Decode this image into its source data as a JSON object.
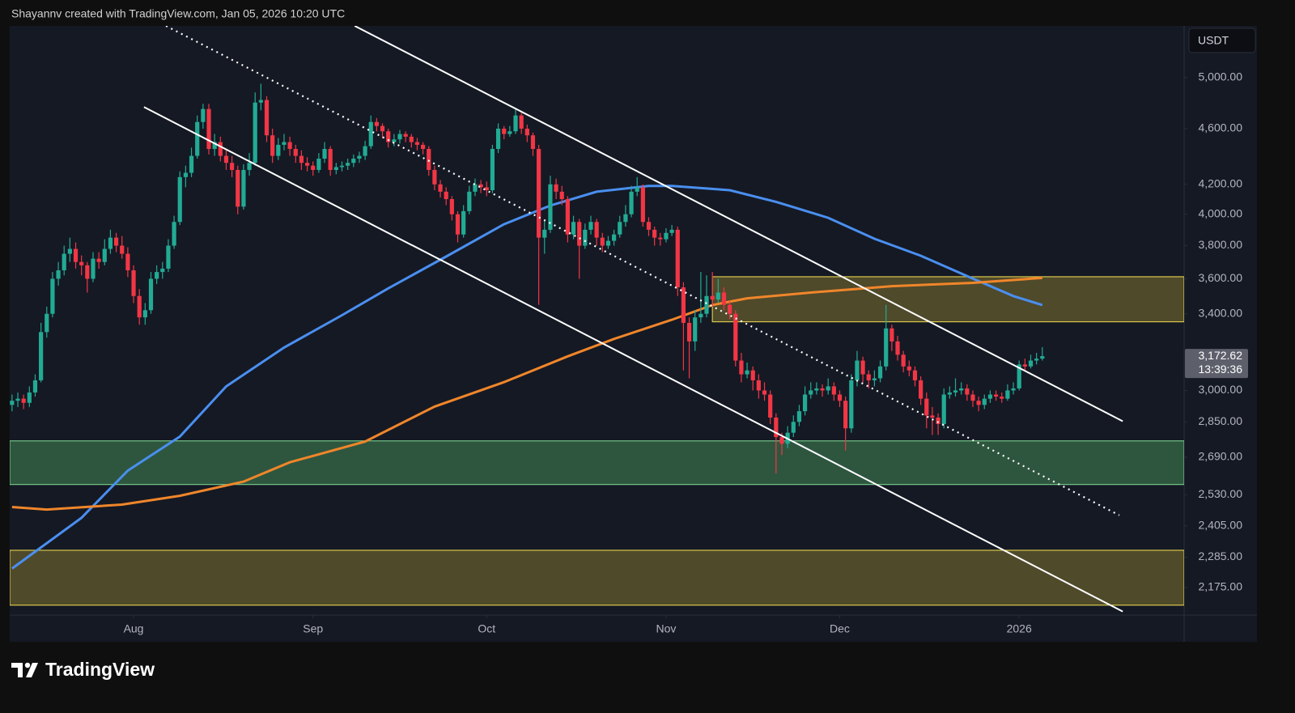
{
  "header": {
    "text": "Shayannv created with TradingView.com, Jan 05, 2026 10:20 UTC"
  },
  "logo": {
    "text": "TradingView"
  },
  "chart_data": {
    "type": "candlestick",
    "currency": "USDT",
    "log_scale": true,
    "up_color": "#22ab94",
    "down_color": "#f23645",
    "ylim": [
      2079,
      5440
    ],
    "yticks": [
      {
        "value": 5000,
        "label": "5,000.00"
      },
      {
        "value": 4600,
        "label": "4,600.00"
      },
      {
        "value": 4200,
        "label": "4,200.00"
      },
      {
        "value": 4000,
        "label": "4,000.00"
      },
      {
        "value": 3800,
        "label": "3,800.00"
      },
      {
        "value": 3600,
        "label": "3,600.00"
      },
      {
        "value": 3400,
        "label": "3,400.00"
      },
      {
        "value": 3000,
        "label": "3,000.00"
      },
      {
        "value": 2850,
        "label": "2,850.00"
      },
      {
        "value": 2690,
        "label": "2,690.00"
      },
      {
        "value": 2530,
        "label": "2,530.00"
      },
      {
        "value": 2405,
        "label": "2,405.00"
      },
      {
        "value": 2285,
        "label": "2,285.00"
      },
      {
        "value": 2175,
        "label": "2,175.00"
      }
    ],
    "xlim": [
      -0.4,
      202.5
    ],
    "xticks": [
      {
        "value": 21,
        "label": "Aug"
      },
      {
        "value": 52,
        "label": "Sep"
      },
      {
        "value": 82,
        "label": "Oct"
      },
      {
        "value": 113,
        "label": "Nov"
      },
      {
        "value": 143,
        "label": "Dec"
      },
      {
        "value": 174,
        "label": "2026"
      }
    ],
    "last_price": {
      "value": 3172.62,
      "label": "3,172.62"
    },
    "countdown": "13:39:36",
    "zones": [
      {
        "x_start": 121,
        "range": [
          3356,
          3612
        ],
        "fill": "#4f4a2a",
        "border": "#d9c74b"
      },
      {
        "range": [
          2573,
          2763
        ],
        "fill": "#2e563f",
        "border": "#72c386"
      },
      {
        "range": [
          2113,
          2311
        ],
        "fill": "#4f4a2a",
        "border": "#d9c74b"
      }
    ],
    "trendlines": [
      {
        "x": [
          59.2,
          191.9
        ],
        "values": [
          5440,
          2853
        ],
        "dashed": false
      },
      {
        "x": [
          26.6,
          191.3
        ],
        "values": [
          5440,
          2447
        ],
        "dashed": true
      },
      {
        "x": [
          22.8,
          191.9
        ],
        "values": [
          4765,
          2091
        ],
        "dashed": false
      }
    ],
    "moving_averages": [
      {
        "color": "#4a8ff0",
        "x": [
          0,
          12,
          20,
          29,
          37,
          47,
          57,
          65,
          75,
          85,
          93,
          101,
          110,
          114,
          124,
          132,
          141,
          149,
          157,
          166,
          173,
          178
        ],
        "values": [
          2243,
          2437,
          2632,
          2782,
          3020,
          3218,
          3392,
          3544,
          3733,
          3935,
          4057,
          4150,
          4189,
          4189,
          4160,
          4082,
          3977,
          3843,
          3738,
          3601,
          3500,
          3449
        ]
      },
      {
        "color": "#f0862a",
        "x": [
          0,
          6,
          19,
          29,
          40,
          48,
          61,
          73,
          85,
          96,
          104,
          114,
          121,
          127,
          138,
          152,
          166,
          178
        ],
        "values": [
          2480,
          2470,
          2490,
          2526,
          2585,
          2668,
          2760,
          2922,
          3041,
          3172,
          3263,
          3367,
          3449,
          3487,
          3520,
          3557,
          3576,
          3605
        ]
      }
    ],
    "ohlc": [
      [
        2930,
        2980,
        2900,
        2950
      ],
      [
        2950,
        2990,
        2920,
        2960
      ],
      [
        2960,
        2980,
        2910,
        2940
      ],
      [
        2940,
        3020,
        2920,
        2990
      ],
      [
        2990,
        3080,
        2970,
        3050
      ],
      [
        3050,
        3350,
        3040,
        3300
      ],
      [
        3300,
        3440,
        3270,
        3400
      ],
      [
        3400,
        3640,
        3380,
        3600
      ],
      [
        3600,
        3700,
        3560,
        3650
      ],
      [
        3650,
        3800,
        3620,
        3750
      ],
      [
        3750,
        3850,
        3700,
        3780
      ],
      [
        3780,
        3820,
        3660,
        3700
      ],
      [
        3700,
        3740,
        3620,
        3680
      ],
      [
        3680,
        3700,
        3520,
        3600
      ],
      [
        3600,
        3760,
        3580,
        3720
      ],
      [
        3720,
        3760,
        3660,
        3700
      ],
      [
        3700,
        3840,
        3680,
        3780
      ],
      [
        3780,
        3900,
        3750,
        3850
      ],
      [
        3850,
        3880,
        3760,
        3800
      ],
      [
        3800,
        3860,
        3720,
        3750
      ],
      [
        3750,
        3790,
        3610,
        3650
      ],
      [
        3650,
        3680,
        3460,
        3500
      ],
      [
        3500,
        3540,
        3340,
        3380
      ],
      [
        3380,
        3460,
        3340,
        3420
      ],
      [
        3420,
        3640,
        3400,
        3600
      ],
      [
        3600,
        3680,
        3570,
        3640
      ],
      [
        3640,
        3700,
        3600,
        3660
      ],
      [
        3660,
        3840,
        3640,
        3800
      ],
      [
        3800,
        3990,
        3780,
        3950
      ],
      [
        3950,
        4290,
        3930,
        4250
      ],
      [
        4250,
        4330,
        4180,
        4280
      ],
      [
        4280,
        4460,
        4250,
        4400
      ],
      [
        4400,
        4700,
        4380,
        4650
      ],
      [
        4650,
        4790,
        4600,
        4750
      ],
      [
        4750,
        4790,
        4410,
        4450
      ],
      [
        4450,
        4560,
        4400,
        4500
      ],
      [
        4500,
        4540,
        4360,
        4400
      ],
      [
        4400,
        4440,
        4300,
        4350
      ],
      [
        4350,
        4400,
        4250,
        4300
      ],
      [
        4300,
        4330,
        4000,
        4050
      ],
      [
        4050,
        4340,
        4030,
        4300
      ],
      [
        4300,
        4420,
        4260,
        4350
      ],
      [
        4350,
        4880,
        4330,
        4800
      ],
      [
        4800,
        4950,
        4740,
        4820
      ],
      [
        4820,
        4850,
        4500,
        4550
      ],
      [
        4550,
        4600,
        4350,
        4400
      ],
      [
        4400,
        4530,
        4370,
        4480
      ],
      [
        4480,
        4560,
        4440,
        4500
      ],
      [
        4500,
        4540,
        4400,
        4450
      ],
      [
        4450,
        4480,
        4350,
        4400
      ],
      [
        4400,
        4440,
        4300,
        4350
      ],
      [
        4350,
        4390,
        4290,
        4330
      ],
      [
        4330,
        4360,
        4260,
        4300
      ],
      [
        4300,
        4420,
        4280,
        4380
      ],
      [
        4380,
        4500,
        4350,
        4450
      ],
      [
        4450,
        4470,
        4260,
        4300
      ],
      [
        4300,
        4350,
        4270,
        4320
      ],
      [
        4320,
        4360,
        4290,
        4330
      ],
      [
        4330,
        4380,
        4300,
        4350
      ],
      [
        4350,
        4410,
        4320,
        4380
      ],
      [
        4380,
        4430,
        4350,
        4400
      ],
      [
        4400,
        4510,
        4370,
        4470
      ],
      [
        4470,
        4700,
        4450,
        4650
      ],
      [
        4650,
        4680,
        4580,
        4620
      ],
      [
        4620,
        4640,
        4530,
        4580
      ],
      [
        4580,
        4600,
        4460,
        4500
      ],
      [
        4500,
        4560,
        4470,
        4520
      ],
      [
        4520,
        4590,
        4490,
        4560
      ],
      [
        4560,
        4580,
        4500,
        4540
      ],
      [
        4540,
        4560,
        4460,
        4500
      ],
      [
        4500,
        4530,
        4440,
        4480
      ],
      [
        4480,
        4500,
        4410,
        4450
      ],
      [
        4450,
        4470,
        4260,
        4300
      ],
      [
        4300,
        4330,
        4160,
        4200
      ],
      [
        4200,
        4230,
        4110,
        4150
      ],
      [
        4150,
        4180,
        4060,
        4100
      ],
      [
        4100,
        4120,
        3960,
        4000
      ],
      [
        4000,
        4020,
        3820,
        3870
      ],
      [
        3870,
        4060,
        3850,
        4020
      ],
      [
        4020,
        4190,
        4000,
        4150
      ],
      [
        4150,
        4240,
        4120,
        4200
      ],
      [
        4200,
        4230,
        4140,
        4180
      ],
      [
        4180,
        4220,
        4120,
        4160
      ],
      [
        4160,
        4480,
        4140,
        4450
      ],
      [
        4450,
        4640,
        4420,
        4600
      ],
      [
        4600,
        4620,
        4520,
        4560
      ],
      [
        4560,
        4620,
        4540,
        4580
      ],
      [
        4580,
        4760,
        4560,
        4700
      ],
      [
        4700,
        4720,
        4560,
        4600
      ],
      [
        4600,
        4630,
        4500,
        4550
      ],
      [
        4550,
        4570,
        4400,
        4450
      ],
      [
        4450,
        4480,
        3450,
        3850
      ],
      [
        3850,
        3960,
        3750,
        3900
      ],
      [
        3900,
        4260,
        3880,
        4200
      ],
      [
        4200,
        4240,
        4100,
        4150
      ],
      [
        4150,
        4190,
        4060,
        4100
      ],
      [
        4100,
        4120,
        3820,
        3870
      ],
      [
        3870,
        3990,
        3840,
        3950
      ],
      [
        3950,
        3970,
        3600,
        3800
      ],
      [
        3800,
        3940,
        3780,
        3900
      ],
      [
        3900,
        3990,
        3870,
        3950
      ],
      [
        3950,
        3970,
        3800,
        3850
      ],
      [
        3850,
        3880,
        3760,
        3800
      ],
      [
        3800,
        3860,
        3780,
        3830
      ],
      [
        3830,
        3900,
        3800,
        3870
      ],
      [
        3870,
        3990,
        3850,
        3950
      ],
      [
        3950,
        4060,
        3920,
        4000
      ],
      [
        4000,
        4190,
        3980,
        4150
      ],
      [
        4150,
        4250,
        4120,
        4180
      ],
      [
        4180,
        4200,
        3920,
        3950
      ],
      [
        3950,
        3980,
        3860,
        3900
      ],
      [
        3900,
        3920,
        3800,
        3850
      ],
      [
        3850,
        3880,
        3800,
        3840
      ],
      [
        3840,
        3910,
        3820,
        3880
      ],
      [
        3880,
        3930,
        3860,
        3900
      ],
      [
        3900,
        3920,
        3500,
        3550
      ],
      [
        3550,
        3580,
        3100,
        3350
      ],
      [
        3350,
        3380,
        3060,
        3250
      ],
      [
        3250,
        3420,
        3200,
        3380
      ],
      [
        3380,
        3640,
        3350,
        3400
      ],
      [
        3400,
        3620,
        3380,
        3500
      ],
      [
        3500,
        3640,
        3440,
        3480
      ],
      [
        3480,
        3600,
        3460,
        3520
      ],
      [
        3520,
        3550,
        3420,
        3450
      ],
      [
        3450,
        3470,
        3370,
        3400
      ],
      [
        3400,
        3420,
        3120,
        3150
      ],
      [
        3150,
        3190,
        3040,
        3080
      ],
      [
        3080,
        3140,
        3060,
        3100
      ],
      [
        3100,
        3120,
        3000,
        3050
      ],
      [
        3050,
        3080,
        2960,
        3000
      ],
      [
        3000,
        3040,
        2950,
        2980
      ],
      [
        2980,
        3000,
        2840,
        2870
      ],
      [
        2870,
        2890,
        2620,
        2780
      ],
      [
        2780,
        2800,
        2700,
        2750
      ],
      [
        2750,
        2830,
        2730,
        2800
      ],
      [
        2800,
        2880,
        2780,
        2850
      ],
      [
        2850,
        2930,
        2830,
        2900
      ],
      [
        2900,
        3020,
        2880,
        2980
      ],
      [
        2980,
        3040,
        2960,
        3000
      ],
      [
        3000,
        3040,
        2980,
        3010
      ],
      [
        3010,
        3030,
        2970,
        3000
      ],
      [
        3000,
        3060,
        2980,
        3020
      ],
      [
        3020,
        3040,
        2950,
        2980
      ],
      [
        2980,
        3000,
        2920,
        2950
      ],
      [
        2950,
        2970,
        2720,
        2820
      ],
      [
        2820,
        3080,
        2800,
        3050
      ],
      [
        3050,
        3200,
        3020,
        3150
      ],
      [
        3150,
        3170,
        3040,
        3080
      ],
      [
        3080,
        3100,
        3010,
        3050
      ],
      [
        3050,
        3100,
        3020,
        3060
      ],
      [
        3060,
        3150,
        3040,
        3120
      ],
      [
        3120,
        3450,
        3100,
        3320
      ],
      [
        3320,
        3340,
        3200,
        3250
      ],
      [
        3250,
        3280,
        3150,
        3180
      ],
      [
        3180,
        3200,
        3090,
        3120
      ],
      [
        3120,
        3150,
        3070,
        3100
      ],
      [
        3100,
        3120,
        3020,
        3050
      ],
      [
        3050,
        3070,
        2930,
        2960
      ],
      [
        2960,
        2990,
        2820,
        2880
      ],
      [
        2880,
        2920,
        2790,
        2870
      ],
      [
        2870,
        2890,
        2790,
        2840
      ],
      [
        2840,
        3010,
        2820,
        2980
      ],
      [
        2980,
        3020,
        2960,
        2990
      ],
      [
        2990,
        3060,
        2970,
        3000
      ],
      [
        3000,
        3040,
        2980,
        3010
      ],
      [
        3010,
        3030,
        2950,
        2980
      ],
      [
        2980,
        3000,
        2920,
        2950
      ],
      [
        2950,
        2970,
        2900,
        2930
      ],
      [
        2930,
        2980,
        2910,
        2960
      ],
      [
        2960,
        3000,
        2940,
        2980
      ],
      [
        2980,
        3000,
        2950,
        2970
      ],
      [
        2970,
        2990,
        2940,
        2960
      ],
      [
        2960,
        3030,
        2950,
        3000
      ],
      [
        3000,
        3040,
        2980,
        3010
      ],
      [
        3010,
        3150,
        3000,
        3130
      ],
      [
        3130,
        3160,
        3100,
        3120
      ],
      [
        3120,
        3180,
        3110,
        3150
      ],
      [
        3150,
        3190,
        3130,
        3160
      ],
      [
        3160,
        3220,
        3150,
        3172.62
      ]
    ]
  }
}
